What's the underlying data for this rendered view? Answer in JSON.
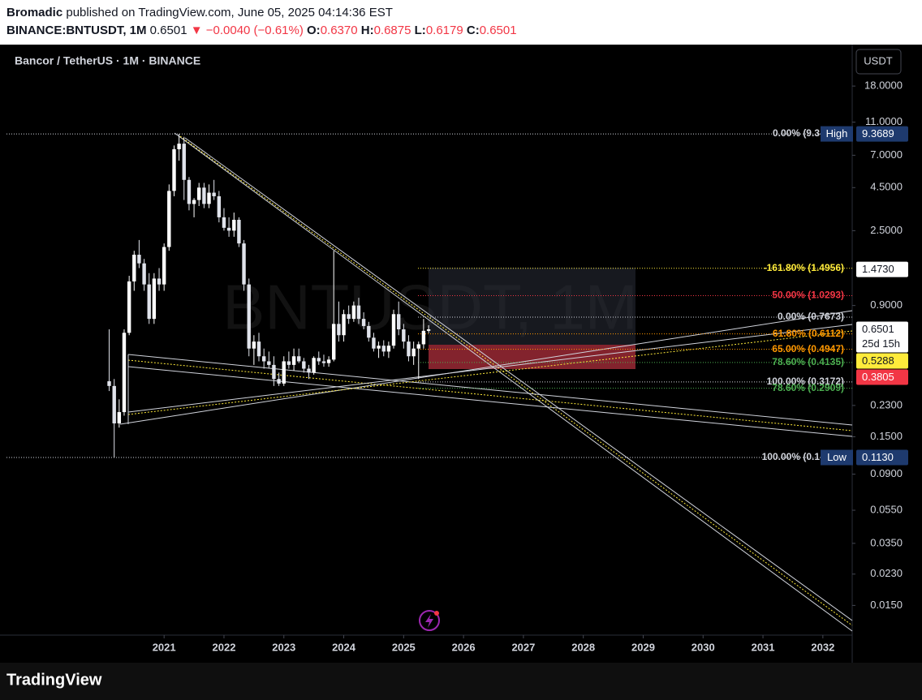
{
  "header": {
    "publisher": "Bromadic",
    "published": "published on TradingView.com, June 05, 2025 04:14:36 EST",
    "symbol": "BINANCE:BNTUSDT, 1M",
    "last": "0.6501",
    "change": "▼ −0.0040 (−0.61%)",
    "o_label": "O:",
    "o": "0.6370",
    "h_label": "H:",
    "h": "0.6875",
    "l_label": "L:",
    "l": "0.6179",
    "c_label": "C:",
    "c": "0.6501"
  },
  "chart_data": {
    "type": "candlestick",
    "legend": "Bancor / TetherUS · 1M · BINANCE",
    "currency": "USDT",
    "watermark": "BNTUSDT, 1M",
    "log_scale": true,
    "up_color": "#ffffff",
    "down_color": "#e0e3eb",
    "x": [
      2020.083,
      2020.167,
      2020.25,
      2020.333,
      2020.417,
      2020.5,
      2020.583,
      2020.667,
      2020.75,
      2020.833,
      2020.917,
      2021.0,
      2021.083,
      2021.167,
      2021.25,
      2021.333,
      2021.417,
      2021.5,
      2021.583,
      2021.667,
      2021.75,
      2021.833,
      2021.917,
      2022.0,
      2022.083,
      2022.167,
      2022.25,
      2022.333,
      2022.417,
      2022.5,
      2022.583,
      2022.667,
      2022.75,
      2022.833,
      2022.917,
      2023.0,
      2023.083,
      2023.167,
      2023.25,
      2023.333,
      2023.417,
      2023.5,
      2023.583,
      2023.667,
      2023.75,
      2023.833,
      2023.917,
      2024.0,
      2024.083,
      2024.167,
      2024.25,
      2024.333,
      2024.417,
      2024.5,
      2024.583,
      2024.667,
      2024.75,
      2024.833,
      2024.917,
      2025.0,
      2025.083,
      2025.167,
      2025.25,
      2025.333,
      2025.417
    ],
    "open": [
      0.32,
      0.3,
      0.18,
      0.21,
      0.62,
      1.25,
      1.8,
      1.6,
      1.2,
      0.75,
      1.3,
      1.2,
      2.0,
      4.3,
      7.6,
      8.2,
      5.0,
      3.6,
      3.8,
      4.5,
      3.6,
      4.2,
      4.0,
      3.0,
      2.6,
      2.5,
      2.9,
      2.1,
      1.2,
      0.5,
      0.55,
      0.45,
      0.42,
      0.4,
      0.33,
      0.31,
      0.42,
      0.4,
      0.45,
      0.42,
      0.38,
      0.36,
      0.44,
      0.42,
      0.41,
      0.43,
      0.7,
      0.6,
      0.8,
      0.75,
      0.9,
      0.75,
      0.68,
      0.58,
      0.5,
      0.52,
      0.48,
      0.52,
      0.8,
      0.65,
      0.55,
      0.45,
      0.5,
      0.53,
      0.637
    ],
    "high": [
      0.65,
      0.33,
      0.25,
      0.65,
      1.35,
      1.9,
      2.2,
      1.7,
      1.4,
      1.4,
      1.5,
      2.1,
      4.7,
      8.0,
      9.3689,
      9.0,
      5.2,
      3.9,
      4.8,
      4.8,
      4.7,
      5.0,
      4.3,
      3.4,
      3.0,
      3.2,
      3.0,
      2.2,
      1.3,
      0.6,
      0.62,
      0.5,
      0.48,
      0.45,
      0.36,
      0.45,
      0.48,
      0.5,
      0.5,
      0.44,
      0.4,
      0.45,
      0.48,
      0.46,
      0.45,
      1.9,
      0.95,
      0.85,
      0.9,
      0.95,
      1.0,
      0.82,
      0.72,
      0.62,
      0.55,
      0.56,
      0.55,
      0.85,
      0.95,
      0.7,
      0.6,
      0.55,
      0.55,
      0.75,
      0.6875
    ],
    "low": [
      0.28,
      0.113,
      0.17,
      0.2,
      0.6,
      1.1,
      1.5,
      1.1,
      0.7,
      0.7,
      1.1,
      1.1,
      1.9,
      4.0,
      6.5,
      3.8,
      3.3,
      3.0,
      3.5,
      3.4,
      3.4,
      3.8,
      2.8,
      2.5,
      2.3,
      2.3,
      2.0,
      1.1,
      0.45,
      0.4,
      0.42,
      0.38,
      0.38,
      0.3,
      0.3,
      0.3,
      0.38,
      0.37,
      0.41,
      0.36,
      0.33,
      0.35,
      0.4,
      0.39,
      0.39,
      0.42,
      0.55,
      0.55,
      0.7,
      0.72,
      0.7,
      0.65,
      0.55,
      0.48,
      0.44,
      0.45,
      0.44,
      0.5,
      0.6,
      0.5,
      0.42,
      0.4,
      0.33,
      0.5,
      0.6179
    ],
    "close": [
      0.3,
      0.18,
      0.21,
      0.62,
      1.25,
      1.8,
      1.6,
      1.2,
      0.75,
      1.3,
      1.2,
      2.0,
      4.3,
      7.6,
      8.2,
      5.0,
      3.6,
      3.8,
      4.5,
      3.6,
      4.2,
      4.0,
      3.0,
      2.6,
      2.5,
      2.9,
      2.1,
      1.2,
      0.5,
      0.55,
      0.45,
      0.42,
      0.4,
      0.33,
      0.31,
      0.42,
      0.4,
      0.45,
      0.42,
      0.38,
      0.36,
      0.44,
      0.42,
      0.41,
      0.43,
      0.7,
      0.6,
      0.8,
      0.75,
      0.9,
      0.75,
      0.68,
      0.58,
      0.5,
      0.52,
      0.48,
      0.52,
      0.8,
      0.65,
      0.55,
      0.45,
      0.5,
      0.53,
      0.637,
      0.6501
    ],
    "xlim": [
      2018.26,
      2032.49
    ],
    "xticks": [
      2021,
      2022,
      2023,
      2024,
      2025,
      2026,
      2027,
      2028,
      2029,
      2030,
      2031,
      2032
    ],
    "ylim": [
      0.01,
      31.7
    ],
    "yticks": [
      {
        "value": 18,
        "label": "18.0000"
      },
      {
        "value": 11,
        "label": "11.0000"
      },
      {
        "value": 7,
        "label": "7.0000"
      },
      {
        "value": 4.5,
        "label": "4.5000"
      },
      {
        "value": 2.5,
        "label": "2.5000"
      },
      {
        "value": 0.9,
        "label": "0.9000"
      },
      {
        "value": 0.23,
        "label": "0.2300"
      },
      {
        "value": 0.15,
        "label": "0.1500"
      },
      {
        "value": 0.09,
        "label": "0.0900"
      },
      {
        "value": 0.055,
        "label": "0.0550"
      },
      {
        "value": 0.035,
        "label": "0.0350"
      },
      {
        "value": 0.023,
        "label": "0.0230"
      },
      {
        "value": 0.015,
        "label": "0.0150"
      }
    ],
    "fib_levels": [
      {
        "label": "0.00% (9.3",
        "value": 9.3689,
        "color": "#d1d4dc"
      },
      {
        "label": "-161.80% (1.4956)",
        "value": 1.4956,
        "color": "#ffeb3b"
      },
      {
        "label": "50.00% (1.0293)",
        "value": 1.0293,
        "color": "#f23645"
      },
      {
        "label": "0.00% (0.7673)",
        "value": 0.7673,
        "color": "#d1d4dc"
      },
      {
        "label": "61.80% (0.6112)",
        "value": 0.6112,
        "color": "#ff9800"
      },
      {
        "label": "65.00% (0.4947)",
        "value": 0.4947,
        "color": "#ff9800"
      },
      {
        "label": "78.60% (0.4135)",
        "value": 0.4135,
        "color": "#4caf50"
      },
      {
        "label": "100.00% (0.3172)",
        "value": 0.3172,
        "color": "#d1d4dc"
      },
      {
        "label": "78.60% (0.2909)",
        "value": 0.2909,
        "color": "#4caf50"
      },
      {
        "label": "100.00% (0.1",
        "value": 0.113,
        "color": "#d1d4dc"
      }
    ],
    "price_tags": [
      {
        "name": "High",
        "value": 9.3689,
        "label": "9.3689",
        "color": "#1e3a6e",
        "text_color": "#ffffff"
      },
      {
        "value": 1.473,
        "label": "1.4730",
        "color": "#ffffff",
        "text_color": "#131722"
      },
      {
        "value": 0.6501,
        "label": "0.6501",
        "countdown": "25d 15h",
        "color": "#ffffff",
        "text_color": "#131722"
      },
      {
        "value": 0.5288,
        "label": "0.5288",
        "color": "#ffeb3b",
        "text_color": "#131722"
      },
      {
        "value": 0.3805,
        "label": "0.3805",
        "color": "#f23645",
        "text_color": "#ffffff"
      },
      {
        "name": "Low",
        "value": 0.113,
        "label": "0.1130",
        "color": "#1e3a6e",
        "text_color": "#ffffff"
      }
    ]
  },
  "footer": {
    "brand": "TradingView"
  }
}
